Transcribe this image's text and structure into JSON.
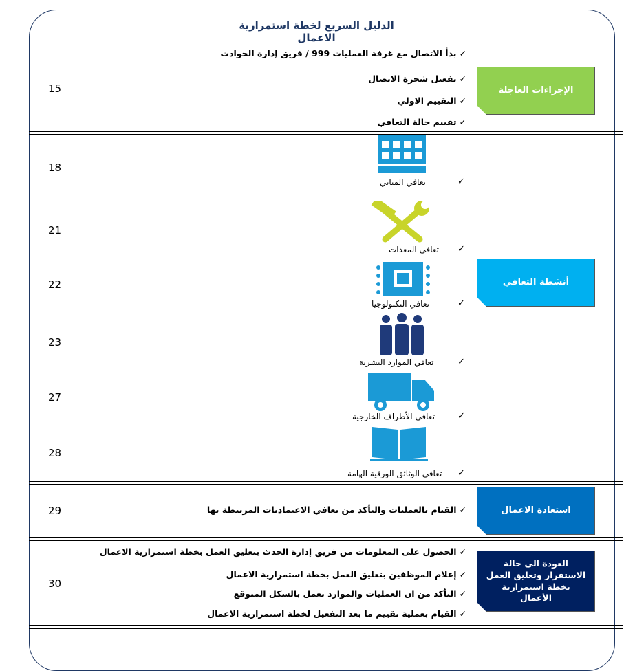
{
  "title": "الدليل السريع لخطة استمرارية الاعمال",
  "sections": [
    {
      "label": "الإجراءات العاجلة",
      "color": "#92d050",
      "page": "15",
      "items": [
        "بدأ الاتصال مع غرفة العمليات 999 / فريق إدارة الحوادث",
        "تفعيل شجرة الاتصال",
        "التقييم الاولي",
        "تقييم حالة التعافي"
      ]
    },
    {
      "label": "أنشطة التعافي",
      "color": "#00b0f0",
      "items": [
        {
          "text": "تعافي المباني",
          "page": "18",
          "icon": "building-icon",
          "icon_color": "#1b9ad6"
        },
        {
          "text": "تعافي المعدات",
          "page": "21",
          "icon": "tools-icon",
          "icon_color": "#c8d42a"
        },
        {
          "text": "تعافي التكنولوجيا",
          "page": "22",
          "icon": "chip-icon",
          "icon_color": "#1b9ad6"
        },
        {
          "text": "تعافي الموارد البشرية",
          "page": "23",
          "icon": "people-icon",
          "icon_color": "#1f3a7a"
        },
        {
          "text": "تعافي الأطراف الخارجية",
          "page": "27",
          "icon": "truck-icon",
          "icon_color": "#1b9ad6"
        },
        {
          "text": "تعافي الوثائق الورقية الهامة",
          "page": "28",
          "icon": "book-icon",
          "icon_color": "#1b9ad6"
        }
      ]
    },
    {
      "label": "استعادة الاعمال",
      "color": "#0070c0",
      "page": "29",
      "items": [
        "القيام بالعمليات والتأكد من تعافي الاعتماديات المرتبطة بها"
      ]
    },
    {
      "label": "العودة الى حالة الاستقرار وتعليق العمل بخطة استمرارية الأعمال",
      "color": "#002060",
      "page": "30",
      "items": [
        "الحصول على المعلومات من فريق إدارة الحدث بتعليق العمل بخطة استمرارية الاعمال",
        "إعلام الموظفين بتعليق العمل بخطة استمرارية الاعمال",
        "التأكد من ان العمليات والموارد تعمل بالشكل المتوقع",
        "القيام بعملية تقييم ما بعد التفعيل لخطة استمرارية الاعمال"
      ]
    }
  ],
  "check": "✓"
}
